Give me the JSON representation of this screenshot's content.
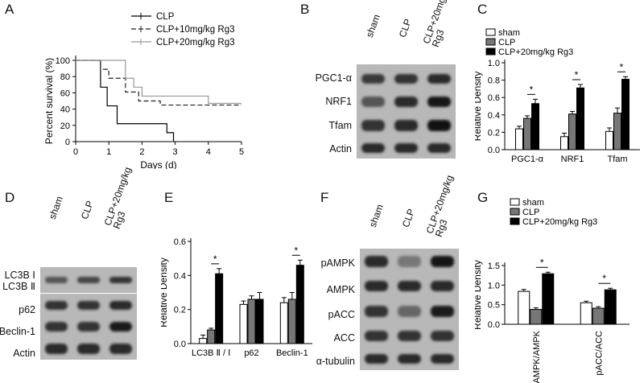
{
  "panels": {
    "A": {
      "letter": "A",
      "chart_data": {
        "type": "line",
        "xlabel": "Days (d)",
        "ylabel": "Percent survival (%)",
        "xlim": [
          0,
          5
        ],
        "ylim": [
          0,
          100
        ],
        "xticks": [
          "0",
          "1",
          "2",
          "3",
          "4",
          "5"
        ],
        "yticks": [
          "0",
          "20",
          "40",
          "60",
          "80",
          "100"
        ],
        "legend_position": "top-right",
        "series": [
          {
            "name": "CLP",
            "style": "solid",
            "color": "#000000",
            "x": [
              0,
              0.75,
              0.75,
              0.95,
              0.95,
              1.25,
              1.25,
              2.75,
              2.75,
              2.95,
              2.95
            ],
            "y": [
              100,
              100,
              67,
              67,
              44,
              44,
              22,
              22,
              11,
              11,
              0
            ]
          },
          {
            "name": "CLP+10mg/kg Rg3",
            "style": "dashed",
            "color": "#222222",
            "x": [
              0,
              0.75,
              0.75,
              1.0,
              1.0,
              1.5,
              1.5,
              1.9,
              1.9,
              2.55,
              2.55,
              5
            ],
            "y": [
              100,
              100,
              89,
              89,
              78,
              78,
              61,
              61,
              50,
              50,
              45,
              45
            ]
          },
          {
            "name": "CLP+20mg/kg Rg3",
            "style": "solid",
            "color": "#999999",
            "x": [
              0,
              1.5,
              1.5,
              1.75,
              1.75,
              2.0,
              2.0,
              4.0,
              4.0,
              5
            ],
            "y": [
              100,
              100,
              78,
              78,
              67,
              67,
              56,
              56,
              47,
              47
            ]
          }
        ]
      }
    },
    "B": {
      "letter": "B",
      "lanes": [
        "sham",
        "CLP",
        "CLP+20mg/kg Rg3"
      ],
      "rows": [
        "PGC1-α",
        "NRF1",
        "Tfam",
        "Actin"
      ]
    },
    "C": {
      "letter": "C",
      "chart_data": {
        "type": "bar",
        "ylabel": "Relative Density",
        "ylim": [
          0,
          1.0
        ],
        "yticks": [
          "0.0",
          "0.2",
          "0.4",
          "0.6",
          "0.8",
          "1.0"
        ],
        "categories": [
          "PGC1-α",
          "NRF1",
          "Tfam"
        ],
        "legend_position": "top-right",
        "series": [
          {
            "name": "sham",
            "color": "#ffffff",
            "values": [
              0.24,
              0.15,
              0.21
            ],
            "errors": [
              0.03,
              0.04,
              0.04
            ]
          },
          {
            "name": "CLP",
            "color": "#777777",
            "values": [
              0.36,
              0.41,
              0.42
            ],
            "errors": [
              0.03,
              0.03,
              0.06
            ]
          },
          {
            "name": "CLP+20mg/kg Rg3",
            "color": "#000000",
            "values": [
              0.53,
              0.71,
              0.81
            ],
            "errors": [
              0.05,
              0.04,
              0.03
            ]
          }
        ],
        "annotations": [
          {
            "text": "*",
            "category": 0
          },
          {
            "text": "*",
            "category": 1
          },
          {
            "text": "*",
            "category": 2
          }
        ]
      }
    },
    "D": {
      "letter": "D",
      "lanes": [
        "sham",
        "CLP",
        "CLP+20mg/kg Rg3"
      ],
      "rows": [
        "LC3B Ⅰ",
        "LC3B Ⅱ",
        "p62",
        "Beclin-1",
        "Actin"
      ]
    },
    "E": {
      "letter": "E",
      "chart_data": {
        "type": "bar",
        "ylabel": "Relative Density",
        "ylim": [
          0,
          0.6
        ],
        "yticks": [
          "0.0",
          "0.2",
          "0.4",
          "0.6"
        ],
        "categories": [
          "LC3B Ⅱ / Ⅰ",
          "p62",
          "Beclin-1"
        ],
        "series": [
          {
            "name": "sham",
            "color": "#ffffff",
            "values": [
              0.03,
              0.23,
              0.24
            ],
            "errors": [
              0.02,
              0.02,
              0.03
            ]
          },
          {
            "name": "CLP",
            "color": "#777777",
            "values": [
              0.08,
              0.26,
              0.26
            ],
            "errors": [
              0.01,
              0.02,
              0.04
            ]
          },
          {
            "name": "CLP+20mg/kg Rg3",
            "color": "#000000",
            "values": [
              0.41,
              0.26,
              0.46
            ],
            "errors": [
              0.03,
              0.04,
              0.03
            ]
          }
        ],
        "annotations": [
          {
            "text": "*",
            "category": 0
          },
          {
            "text": "*",
            "category": 2
          }
        ]
      }
    },
    "F": {
      "letter": "F",
      "lanes": [
        "sham",
        "CLP",
        "CLP+20mg/kg Rg3"
      ],
      "rows": [
        "pAMPK",
        "AMPK",
        "pACC",
        "ACC",
        "α-tubulin"
      ]
    },
    "G": {
      "letter": "G",
      "chart_data": {
        "type": "bar",
        "ylabel": "Relative Density",
        "ylim": [
          0,
          1.5
        ],
        "yticks": [
          "0.0",
          "0.5",
          "1.0",
          "1.5"
        ],
        "categories": [
          "pAMPK/AMPK",
          "pACC/ACC"
        ],
        "legend_position": "top-right",
        "series": [
          {
            "name": "sham",
            "color": "#ffffff",
            "values": [
              0.84,
              0.55
            ],
            "errors": [
              0.05,
              0.04
            ]
          },
          {
            "name": "CLP",
            "color": "#777777",
            "values": [
              0.38,
              0.41
            ],
            "errors": [
              0.04,
              0.04
            ]
          },
          {
            "name": "CLP+20mg/kg Rg3",
            "color": "#000000",
            "values": [
              1.29,
              0.88
            ],
            "errors": [
              0.04,
              0.04
            ]
          }
        ],
        "annotations": [
          {
            "text": "*",
            "category": 0
          },
          {
            "text": "*",
            "category": 1
          }
        ]
      }
    }
  }
}
